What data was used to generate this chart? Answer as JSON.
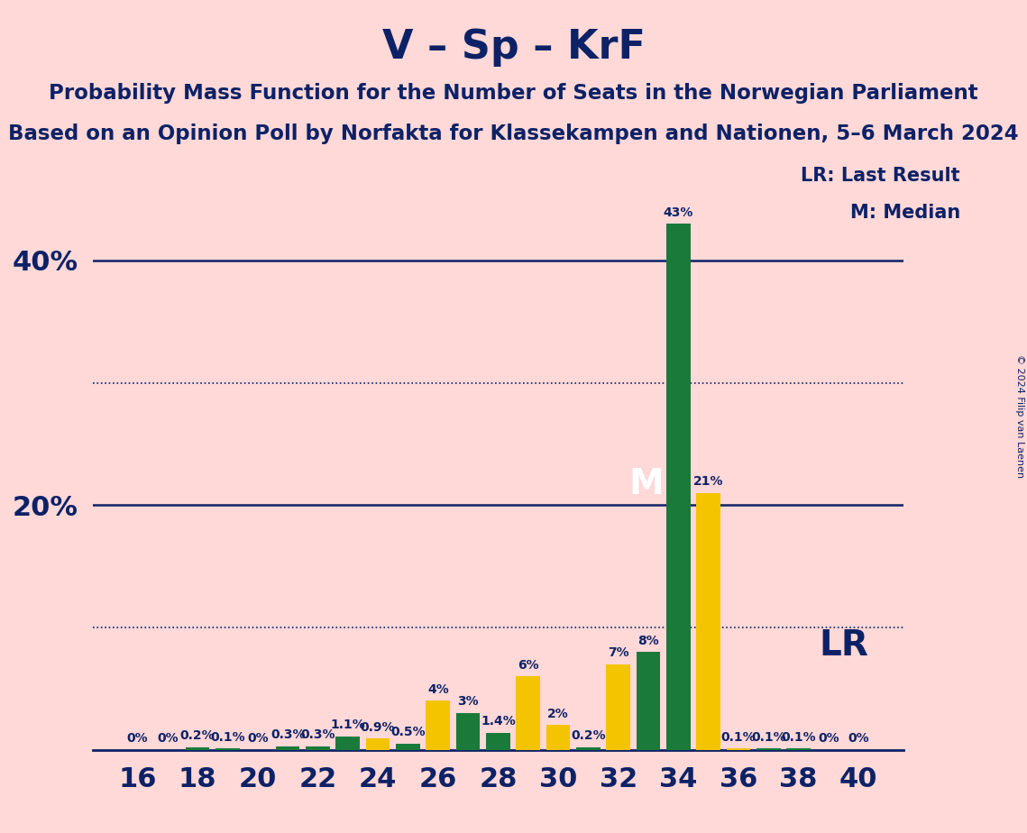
{
  "title": "V – Sp – KrF",
  "subtitle1": "Probability Mass Function for the Number of Seats in the Norwegian Parliament",
  "subtitle2": "Based on an Opinion Poll by Norfakta for Klassekampen and Nationen, 5–6 March 2024",
  "copyright": "© 2024 Filip van Laenen",
  "seats": [
    16,
    17,
    18,
    19,
    20,
    21,
    22,
    23,
    24,
    25,
    26,
    27,
    28,
    29,
    30,
    31,
    32,
    33,
    34,
    35,
    36,
    37,
    38,
    39,
    40
  ],
  "pmf_values": [
    0.0,
    0.0,
    0.2,
    0.1,
    0.0,
    0.3,
    0.3,
    1.1,
    0.9,
    0.5,
    4.0,
    3.0,
    1.4,
    6.0,
    2.0,
    0.2,
    7.0,
    8.0,
    43.0,
    21.0,
    0.1,
    0.1,
    0.1,
    0.0,
    0.0
  ],
  "bar_colors": [
    "#1a7a3a",
    "#1a7a3a",
    "#1a7a3a",
    "#1a7a3a",
    "#1a7a3a",
    "#1a7a3a",
    "#1a7a3a",
    "#1a7a3a",
    "#f5c400",
    "#1a7a3a",
    "#f5c400",
    "#1a7a3a",
    "#1a7a3a",
    "#f5c400",
    "#f5c400",
    "#1a7a3a",
    "#f5c400",
    "#1a7a3a",
    "#1a7a3a",
    "#f5c400",
    "#f5c400",
    "#1a7a3a",
    "#1a7a3a",
    "#1a7a3a",
    "#1a7a3a"
  ],
  "pmf_color": "#1a7a3a",
  "lr_color": "#f5c400",
  "background_color": "#ffd8d8",
  "text_color": "#0d2266",
  "bar_width": 0.8,
  "ylim_max": 47,
  "solid_hlines": [
    20.0,
    40.0
  ],
  "dotted_hlines": [
    10.0,
    30.0
  ],
  "median_seat": 34,
  "legend_lr": "LR: Last Result",
  "legend_m": "M: Median",
  "lr_label": "LR",
  "xticks": [
    16,
    18,
    20,
    22,
    24,
    26,
    28,
    30,
    32,
    34,
    36,
    38,
    40
  ],
  "xlim": [
    14.5,
    41.5
  ]
}
